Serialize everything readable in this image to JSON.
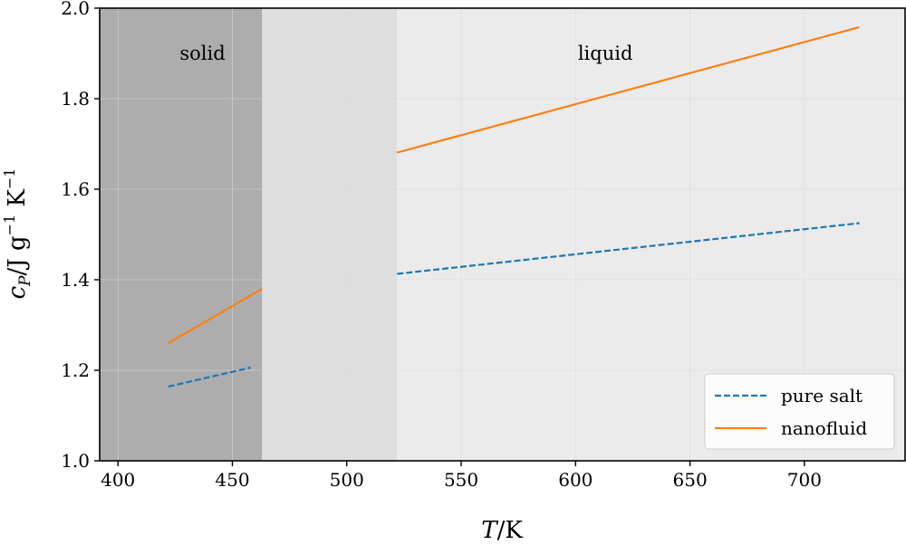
{
  "chart_data": {
    "type": "line",
    "xlabel_italic": "T",
    "xlabel_unit": "/K",
    "ylabel_italic": "c",
    "ylabel_sub": "P",
    "ylabel_unit": "/J g",
    "ylabel_exp1": "−1",
    "ylabel_unit2": " K",
    "ylabel_exp2": "−1",
    "xlim": [
      392,
      744
    ],
    "ylim": [
      1.0,
      2.0
    ],
    "xticks": [
      400,
      450,
      500,
      550,
      600,
      650,
      700
    ],
    "yticks": [
      1.0,
      1.2,
      1.4,
      1.6,
      1.8,
      2.0
    ],
    "xtick_labels": [
      "400",
      "450",
      "500",
      "550",
      "600",
      "650",
      "700"
    ],
    "ytick_labels": [
      "1.0",
      "1.2",
      "1.4",
      "1.6",
      "1.8",
      "2.0"
    ],
    "grid": true,
    "regions": [
      {
        "label": "solid",
        "x0": 392,
        "x1": 463,
        "color": "#adadad"
      },
      {
        "label": "",
        "x0": 463,
        "x1": 522,
        "color": "#dedede"
      },
      {
        "label": "liquid",
        "x0": 522,
        "x1": 744,
        "color": "#ebebeb"
      }
    ],
    "region_label_positions": [
      {
        "text": "solid",
        "x": 427,
        "y": 1.9
      },
      {
        "text": "liquid",
        "x": 601,
        "y": 1.9
      }
    ],
    "series": [
      {
        "name": "pure salt",
        "color": "#1f77b4",
        "dashed": true,
        "segments": [
          [
            [
              422,
              1.164
            ],
            [
              458,
              1.206
            ]
          ],
          [
            [
              522,
              1.413
            ],
            [
              724,
              1.525
            ]
          ]
        ]
      },
      {
        "name": "nanofluid",
        "color": "#ff7f0e",
        "dashed": false,
        "segments": [
          [
            [
              422,
              1.26
            ],
            [
              463,
              1.38
            ]
          ],
          [
            [
              522,
              1.681
            ],
            [
              724,
              1.958
            ]
          ]
        ]
      }
    ],
    "legend_position": "lower right"
  }
}
